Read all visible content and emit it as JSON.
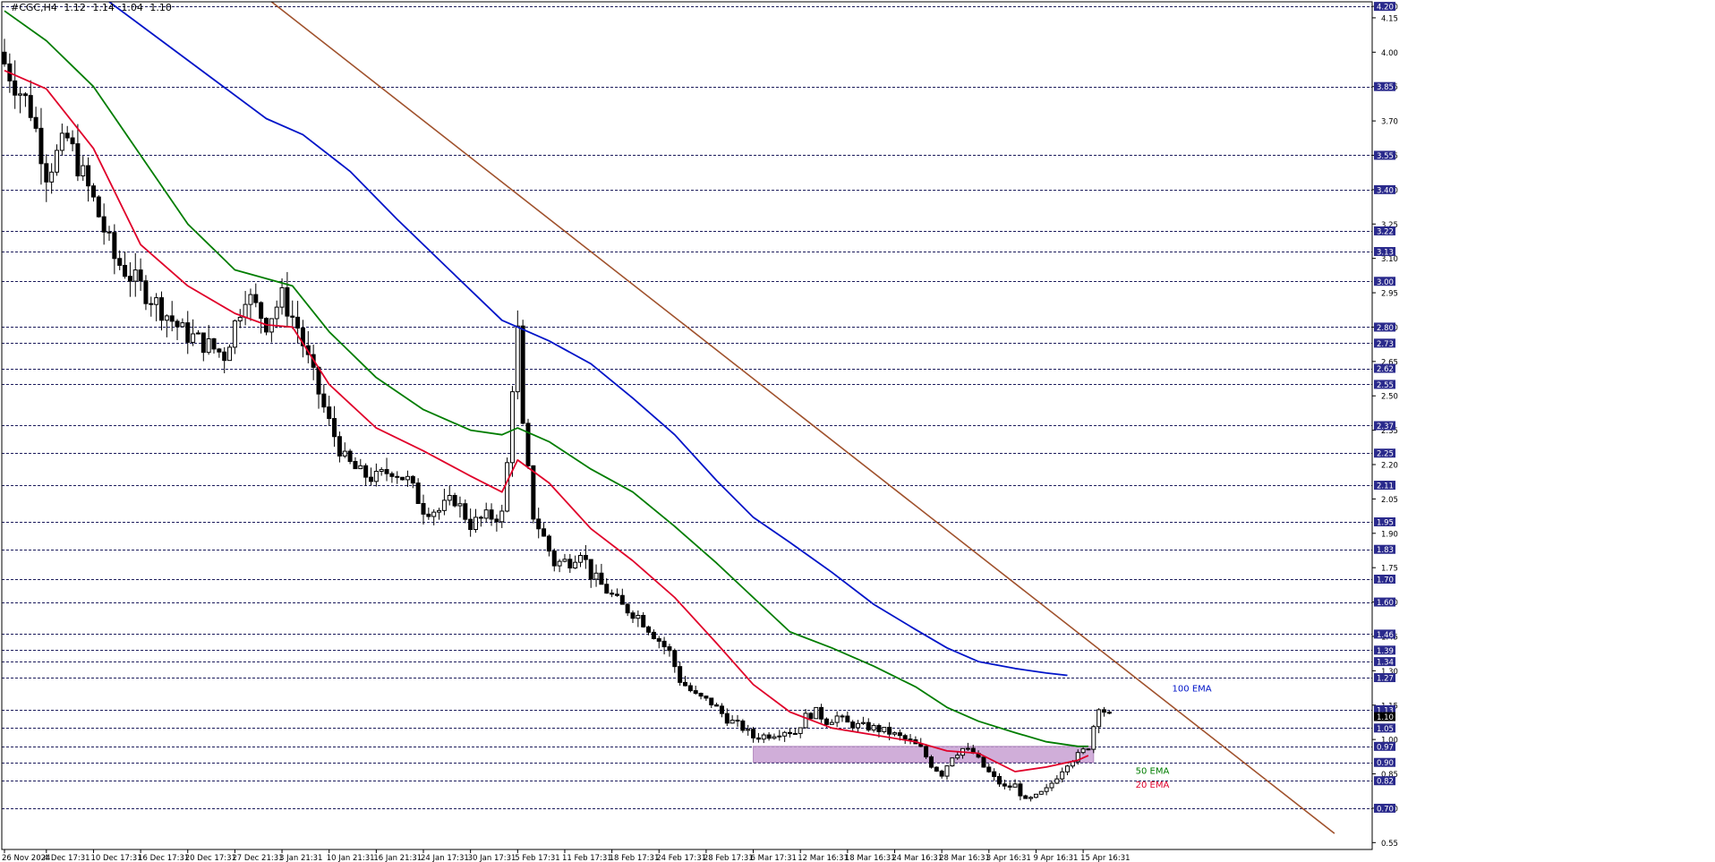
{
  "header": {
    "symbol": "#CGC,H4",
    "open": "1.12",
    "high": "1.14",
    "low": "1.04",
    "close": "1.10"
  },
  "colors": {
    "background": "#ffffff",
    "candle_up": "#ffffff",
    "candle_down": "#000000",
    "ema20": "#e0002a",
    "ema50": "#007d00",
    "ema100": "#0014c8",
    "trendline": "#a0522d",
    "zone": "#c8a0d2",
    "price_label_bg": "#2a2a8c"
  },
  "chart_data": {
    "type": "candlestick",
    "title": "",
    "ylim": [
      0.52,
      4.22
    ],
    "y_ticks": [
      4.2,
      4.15,
      4.0,
      3.85,
      3.7,
      3.55,
      3.4,
      3.25,
      3.1,
      2.95,
      2.8,
      2.65,
      2.5,
      2.35,
      2.2,
      2.05,
      1.9,
      1.75,
      1.6,
      1.45,
      1.3,
      1.15,
      1.0,
      0.85,
      0.7,
      0.55
    ],
    "y_tick_labels": [
      "4.20",
      "4.15",
      "4.00",
      "3.85",
      "3.70",
      "3.55",
      "3.40",
      "3.25",
      "3.10",
      "2.95",
      "2.80",
      "2.65",
      "2.50",
      "2.35",
      "2.20",
      "2.05",
      "1.90",
      "1.75",
      "1.60",
      "1.45",
      "1.30",
      "1.15",
      "1.00",
      "0.85",
      "0.70",
      "0.55"
    ],
    "x_tick_labels": [
      "26 Nov 2024",
      "4 Dec 17:31",
      "10 Dec 17:31",
      "16 Dec 17:31",
      "20 Dec 17:31",
      "27 Dec 21:31",
      "3 Jan 21:31",
      "10 Jan 21:31",
      "16 Jan 21:31",
      "24 Jan 17:31",
      "30 Jan 17:31",
      "5 Feb 17:31",
      "11 Feb 17:31",
      "18 Feb 17:31",
      "24 Feb 17:31",
      "28 Feb 17:31",
      "6 Mar 17:31",
      "12 Mar 16:31",
      "18 Mar 16:31",
      "24 Mar 16:31",
      "28 Mar 16:31",
      "3 Apr 16:31",
      "9 Apr 16:31",
      "15 Apr 16:31"
    ],
    "x_tick_candle_index": [
      0,
      8,
      17,
      26,
      35,
      44,
      53,
      62,
      71,
      80,
      89,
      98,
      107,
      116,
      125,
      134,
      143,
      152,
      161,
      170,
      179,
      188,
      197,
      206
    ],
    "candle_count": 214,
    "horizontal_levels": [
      {
        "value": 4.2,
        "label": "4.20"
      },
      {
        "value": 3.85,
        "label": "3.85"
      },
      {
        "value": 3.55,
        "label": "3.55"
      },
      {
        "value": 3.4,
        "label": "3.40"
      },
      {
        "value": 3.22,
        "label": "3.22"
      },
      {
        "value": 3.13,
        "label": "3.13"
      },
      {
        "value": 3.0,
        "label": "3.00"
      },
      {
        "value": 2.8,
        "label": "2.80"
      },
      {
        "value": 2.73,
        "label": "2.73"
      },
      {
        "value": 2.62,
        "label": "2.62"
      },
      {
        "value": 2.55,
        "label": "2.55"
      },
      {
        "value": 2.37,
        "label": "2.37"
      },
      {
        "value": 2.25,
        "label": "2.25"
      },
      {
        "value": 2.11,
        "label": "2.11"
      },
      {
        "value": 1.95,
        "label": "1.95"
      },
      {
        "value": 1.83,
        "label": "1.83"
      },
      {
        "value": 1.7,
        "label": "1.70"
      },
      {
        "value": 1.6,
        "label": "1.60"
      },
      {
        "value": 1.46,
        "label": "1.46"
      },
      {
        "value": 1.39,
        "label": "1.39"
      },
      {
        "value": 1.34,
        "label": "1.34"
      },
      {
        "value": 1.27,
        "label": "1.27"
      },
      {
        "value": 1.13,
        "label": "1.13"
      },
      {
        "value": 1.05,
        "label": "1.05"
      },
      {
        "value": 0.97,
        "label": "0.97"
      },
      {
        "value": 0.9,
        "label": "0.90"
      },
      {
        "value": 0.82,
        "label": "0.82"
      },
      {
        "value": 0.7,
        "label": "0.70"
      }
    ],
    "current_price": {
      "value": 1.1,
      "label": "1.10"
    },
    "ema20": {
      "name": "20 EMA",
      "points": [
        [
          0,
          3.92
        ],
        [
          8,
          3.84
        ],
        [
          17,
          3.58
        ],
        [
          26,
          3.16
        ],
        [
          35,
          2.98
        ],
        [
          44,
          2.86
        ],
        [
          50,
          2.81
        ],
        [
          55,
          2.8
        ],
        [
          62,
          2.55
        ],
        [
          71,
          2.36
        ],
        [
          80,
          2.26
        ],
        [
          89,
          2.15
        ],
        [
          95,
          2.08
        ],
        [
          98,
          2.22
        ],
        [
          104,
          2.12
        ],
        [
          112,
          1.92
        ],
        [
          120,
          1.78
        ],
        [
          128,
          1.62
        ],
        [
          136,
          1.42
        ],
        [
          143,
          1.24
        ],
        [
          150,
          1.12
        ],
        [
          158,
          1.05
        ],
        [
          166,
          1.02
        ],
        [
          174,
          0.99
        ],
        [
          180,
          0.95
        ],
        [
          186,
          0.94
        ],
        [
          193,
          0.86
        ],
        [
          199,
          0.88
        ],
        [
          205,
          0.91
        ],
        [
          207,
          0.93
        ]
      ]
    },
    "ema50": {
      "name": "50 EMA",
      "points": [
        [
          0,
          4.18
        ],
        [
          8,
          4.05
        ],
        [
          17,
          3.85
        ],
        [
          26,
          3.55
        ],
        [
          35,
          3.25
        ],
        [
          44,
          3.05
        ],
        [
          55,
          2.98
        ],
        [
          62,
          2.78
        ],
        [
          71,
          2.58
        ],
        [
          80,
          2.44
        ],
        [
          89,
          2.35
        ],
        [
          95,
          2.33
        ],
        [
          98,
          2.36
        ],
        [
          104,
          2.3
        ],
        [
          112,
          2.18
        ],
        [
          120,
          2.08
        ],
        [
          128,
          1.93
        ],
        [
          136,
          1.77
        ],
        [
          143,
          1.62
        ],
        [
          150,
          1.47
        ],
        [
          158,
          1.4
        ],
        [
          166,
          1.32
        ],
        [
          174,
          1.23
        ],
        [
          180,
          1.14
        ],
        [
          186,
          1.08
        ],
        [
          193,
          1.03
        ],
        [
          199,
          0.99
        ],
        [
          205,
          0.97
        ],
        [
          207,
          0.97
        ]
      ]
    },
    "ema100": {
      "name": "100 EMA",
      "points": [
        [
          20,
          4.22
        ],
        [
          30,
          4.05
        ],
        [
          40,
          3.88
        ],
        [
          50,
          3.71
        ],
        [
          57,
          3.64
        ],
        [
          66,
          3.48
        ],
        [
          75,
          3.27
        ],
        [
          85,
          3.05
        ],
        [
          95,
          2.83
        ],
        [
          98,
          2.8
        ],
        [
          104,
          2.74
        ],
        [
          112,
          2.64
        ],
        [
          120,
          2.49
        ],
        [
          128,
          2.33
        ],
        [
          136,
          2.13
        ],
        [
          143,
          1.97
        ],
        [
          150,
          1.86
        ],
        [
          158,
          1.73
        ],
        [
          166,
          1.59
        ],
        [
          174,
          1.48
        ],
        [
          180,
          1.4
        ],
        [
          186,
          1.34
        ],
        [
          193,
          1.31
        ],
        [
          199,
          1.29
        ],
        [
          203,
          1.28
        ]
      ]
    },
    "trendline": {
      "name": "",
      "from": [
        51,
        4.22
      ],
      "to": [
        254,
        0.59
      ]
    },
    "zone": {
      "from_index": 143,
      "to_index": 208,
      "low": 0.9,
      "high": 0.97
    },
    "labels": [
      {
        "text": "100 EMA",
        "color_key": "ema100",
        "at": [
          223,
          1.21
        ]
      },
      {
        "text": "50 EMA",
        "color_key": "ema50",
        "at": [
          216,
          0.85
        ]
      },
      {
        "text": "20 EMA",
        "color_key": "ema20",
        "at": [
          216,
          0.79
        ]
      }
    ],
    "candle_waypoints": [
      [
        0,
        3.95
      ],
      [
        5,
        3.75
      ],
      [
        8,
        3.48
      ],
      [
        12,
        3.62
      ],
      [
        17,
        3.35
      ],
      [
        21,
        3.1
      ],
      [
        25,
        3.0
      ],
      [
        30,
        2.88
      ],
      [
        34,
        2.78
      ],
      [
        38,
        2.73
      ],
      [
        42,
        2.68
      ],
      [
        46,
        2.95
      ],
      [
        50,
        2.82
      ],
      [
        53,
        2.93
      ],
      [
        56,
        2.8
      ],
      [
        59,
        2.58
      ],
      [
        62,
        2.38
      ],
      [
        65,
        2.22
      ],
      [
        68,
        2.16
      ],
      [
        71,
        2.14
      ],
      [
        74,
        2.18
      ],
      [
        77,
        2.13
      ],
      [
        80,
        2.01
      ],
      [
        83,
        2.0
      ],
      [
        86,
        2.05
      ],
      [
        89,
        1.94
      ],
      [
        92,
        1.97
      ],
      [
        95,
        1.98
      ],
      [
        96,
        2.2
      ],
      [
        97,
        2.55
      ],
      [
        98,
        2.78
      ],
      [
        99,
        2.35
      ],
      [
        101,
        1.98
      ],
      [
        103,
        1.88
      ],
      [
        105,
        1.77
      ],
      [
        108,
        1.78
      ],
      [
        110,
        1.83
      ],
      [
        112,
        1.72
      ],
      [
        115,
        1.65
      ],
      [
        118,
        1.58
      ],
      [
        121,
        1.54
      ],
      [
        124,
        1.46
      ],
      [
        127,
        1.38
      ],
      [
        129,
        1.26
      ],
      [
        132,
        1.19
      ],
      [
        135,
        1.16
      ],
      [
        138,
        1.09
      ],
      [
        141,
        1.05
      ],
      [
        143,
        1.01
      ],
      [
        146,
        1.02
      ],
      [
        149,
        1.04
      ],
      [
        151,
        1.03
      ],
      [
        153,
        1.1
      ],
      [
        155,
        1.12
      ],
      [
        157,
        1.08
      ],
      [
        159,
        1.1
      ],
      [
        161,
        1.07
      ],
      [
        163,
        1.06
      ],
      [
        166,
        1.05
      ],
      [
        169,
        1.03
      ],
      [
        171,
        1.01
      ],
      [
        173,
        0.99
      ],
      [
        175,
        0.96
      ],
      [
        177,
        0.89
      ],
      [
        179,
        0.85
      ],
      [
        181,
        0.93
      ],
      [
        183,
        0.96
      ],
      [
        185,
        0.94
      ],
      [
        187,
        0.88
      ],
      [
        189,
        0.83
      ],
      [
        191,
        0.79
      ],
      [
        193,
        0.8
      ],
      [
        195,
        0.73
      ],
      [
        197,
        0.75
      ],
      [
        199,
        0.78
      ],
      [
        201,
        0.84
      ],
      [
        203,
        0.9
      ],
      [
        205,
        0.93
      ],
      [
        207,
        0.97
      ],
      [
        209,
        1.15
      ],
      [
        211,
        1.1
      ]
    ]
  }
}
